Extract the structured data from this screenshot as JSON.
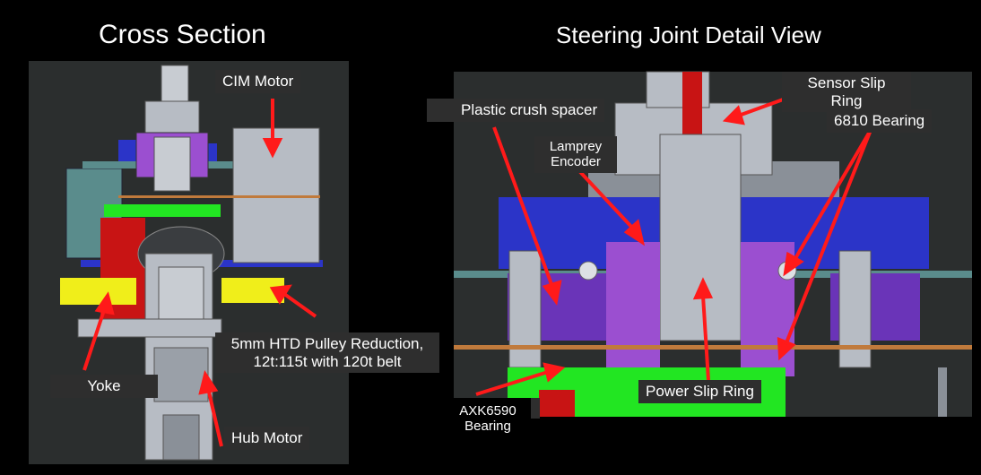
{
  "titles": {
    "left": "Cross Section",
    "right": "Steering Joint Detail View"
  },
  "left_labels": {
    "cim_motor": "CIM Motor",
    "pulley_line1": "5mm HTD Pulley Reduction,",
    "pulley_line2": "12t:115t with 120t belt",
    "yoke": "Yoke",
    "hub_motor": "Hub Motor"
  },
  "right_labels": {
    "sensor_slip_line1": "Sensor Slip",
    "sensor_slip_line2": "Ring",
    "plastic_crush_spacer": "Plastic crush spacer",
    "bearing_6810": "6810 Bearing",
    "lamprey_line1": "Lamprey",
    "lamprey_line2": "Encoder",
    "axk_line1": "AXK6590",
    "axk_line2": "Bearing",
    "power_slip_ring": "Power Slip Ring"
  },
  "colors": {
    "background": "#000000",
    "panel": "#2b2e2e",
    "arrow": "#ff1a1a",
    "steel": "#b7bcc4",
    "purple": "#9b4fd0",
    "blue": "#2b34c8",
    "green": "#22e622",
    "yellow": "#f0ee1a",
    "red": "#c81414",
    "teal": "#5a8c8c",
    "bronze": "#c07a3c"
  }
}
